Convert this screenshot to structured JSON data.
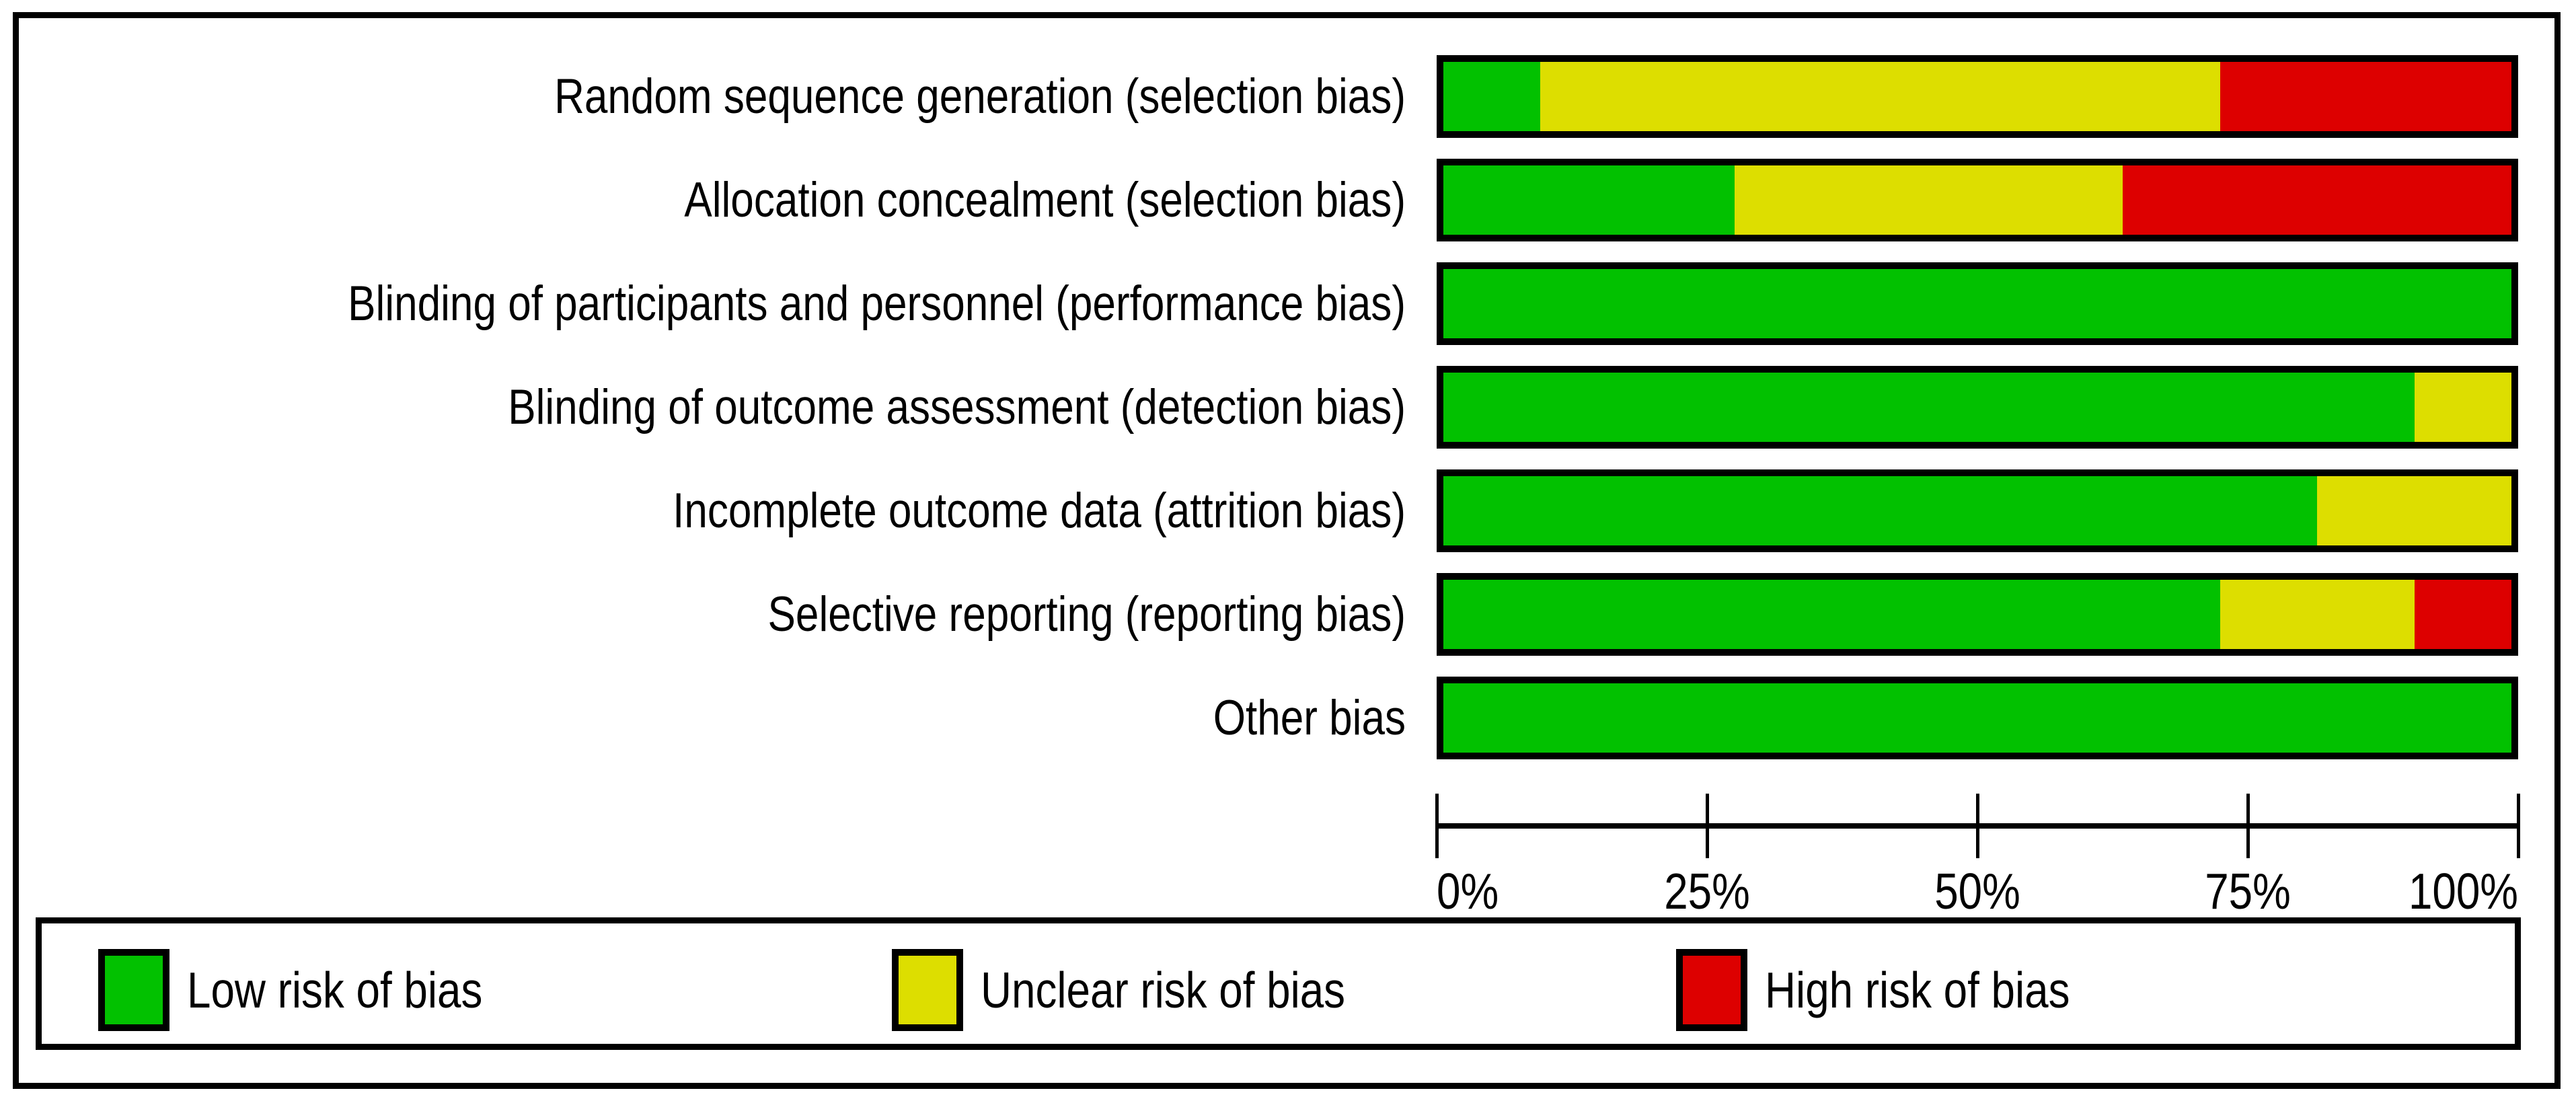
{
  "chart_data": {
    "type": "bar",
    "stacked": true,
    "orientation": "horizontal",
    "title": "",
    "xlabel": "",
    "ylabel": "",
    "categories": [
      "Random sequence generation (selection bias)",
      "Allocation concealment (selection bias)",
      "Blinding of participants and personnel (performance bias)",
      "Blinding of outcome assessment (detection bias)",
      "Incomplete outcome data (attrition bias)",
      "Selective reporting (reporting bias)",
      "Other bias"
    ],
    "series": [
      {
        "key": "low",
        "name": "Low risk of bias",
        "color": "#02C100",
        "values": [
          9.09,
          27.27,
          100,
          90.91,
          81.82,
          72.73,
          100
        ]
      },
      {
        "key": "unclear",
        "name": "Unclear risk of bias",
        "color": "#DDDE00",
        "values": [
          63.64,
          36.36,
          0,
          9.09,
          18.18,
          18.18,
          0
        ]
      },
      {
        "key": "high",
        "name": "High risk of bias",
        "color": "#DD0000",
        "values": [
          27.27,
          36.36,
          0,
          0,
          0,
          9.09,
          0
        ]
      }
    ],
    "x_ticks": [
      "0%",
      "25%",
      "50%",
      "75%",
      "100%"
    ],
    "xlim": [
      0,
      100
    ],
    "grid": false,
    "legend_position": "bottom"
  },
  "colors": {
    "border": "#000000",
    "background": "#FFFFFF"
  }
}
